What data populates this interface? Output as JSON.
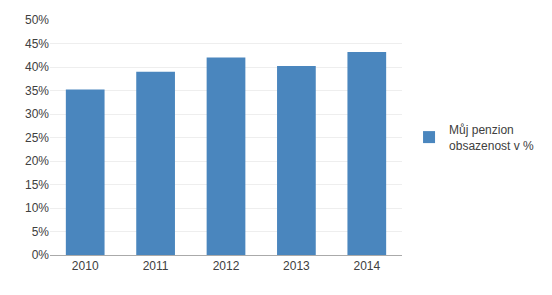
{
  "chart_data": {
    "type": "bar",
    "categories": [
      "2010",
      "2011",
      "2012",
      "2013",
      "2014"
    ],
    "series": [
      {
        "name": "Můj penzion\nobsazenost v %",
        "color": "#4a86be",
        "values": [
          0.352,
          0.39,
          0.42,
          0.402,
          0.432
        ]
      }
    ],
    "ylim": [
      0,
      0.5
    ],
    "yticks": [
      {
        "value": 0.0,
        "label": "0%"
      },
      {
        "value": 0.05,
        "label": "5%"
      },
      {
        "value": 0.1,
        "label": "10%"
      },
      {
        "value": 0.15,
        "label": "15%"
      },
      {
        "value": 0.2,
        "label": "20%"
      },
      {
        "value": 0.25,
        "label": "25%"
      },
      {
        "value": 0.3,
        "label": "30%"
      },
      {
        "value": 0.35,
        "label": "35%"
      },
      {
        "value": 0.4,
        "label": "40%"
      },
      {
        "value": 0.45,
        "label": "45%"
      },
      {
        "value": 0.5,
        "label": "50%"
      }
    ],
    "grid": true,
    "legend": "right"
  }
}
